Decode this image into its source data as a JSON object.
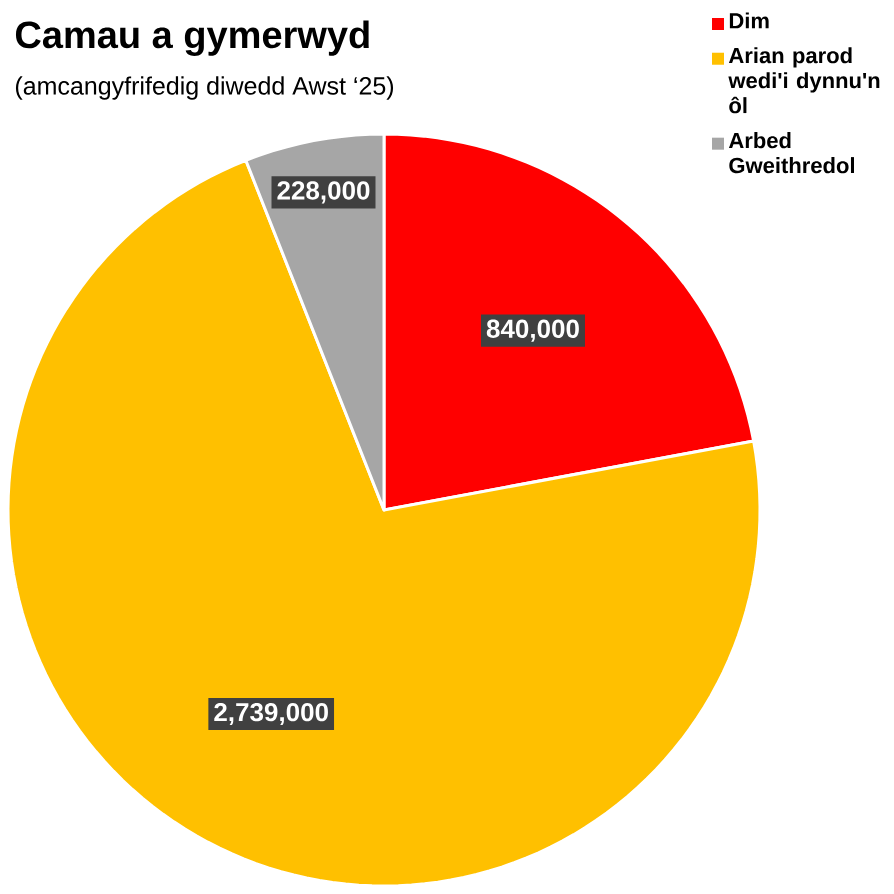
{
  "chart_data": {
    "type": "pie",
    "title": "Camau a gymerwyd",
    "subtitle": "(amcangyfrifedig diwedd Awst ‘25)",
    "categories": [
      "Dim",
      "Arian parod wedi'i dynnu'n ôl",
      "Arbed Gweithredol"
    ],
    "values": [
      840000,
      2739000,
      228000
    ],
    "value_labels": [
      "840,000",
      "2,739,000",
      "228,000"
    ],
    "colors": [
      "#ff0000",
      "#ffc000",
      "#a6a6a6"
    ],
    "legend": "top right"
  }
}
